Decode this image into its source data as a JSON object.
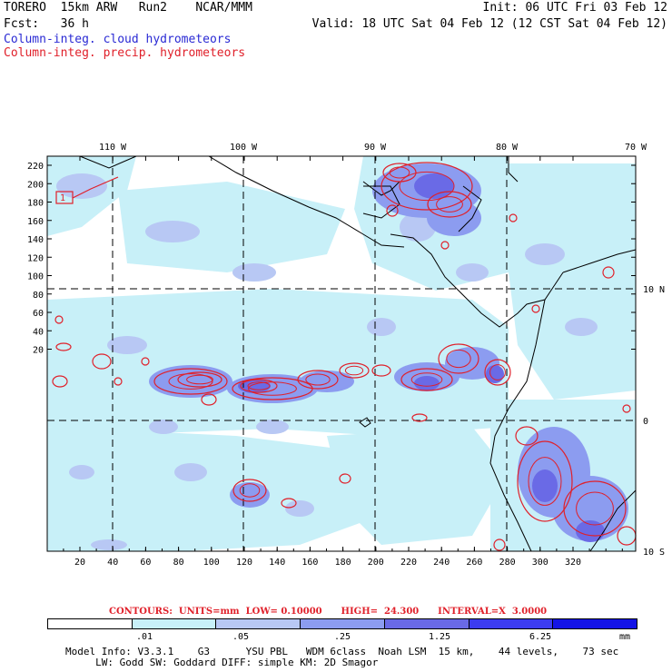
{
  "header": {
    "line1_left": "TORERO  15km ARW   Run2    NCAR/MMM",
    "line1_right": "Init: 06 UTC Fri 03 Feb 12",
    "line2_left": "Fcst:   36 h",
    "line2_right": "Valid: 18 UTC Sat 04 Feb 12 (12 CST Sat 04 Feb 12)",
    "field_cloud": "Column-integ. cloud hydrometeors",
    "field_precip": "Column-integ. precip. hydrometeors"
  },
  "map": {
    "lon_labels": [
      "110 W",
      "100 W",
      "90 W",
      "80 W",
      "70 W"
    ],
    "lat_labels": [
      "10 N",
      "0",
      "10 S"
    ],
    "y_ticks": [
      "220",
      "200",
      "180",
      "160",
      "140",
      "120",
      "100",
      "80",
      "60",
      "40",
      "20"
    ],
    "x_ticks": [
      "20",
      "40",
      "60",
      "80",
      "100",
      "120",
      "140",
      "160",
      "180",
      "200",
      "220",
      "240",
      "260",
      "280",
      "300",
      "320"
    ],
    "box_label": "1",
    "colors": {
      "shade1": "#c8f0f8",
      "shade2": "#b8c8f4",
      "shade3": "#8c9cf0",
      "shade4": "#6a6ae6",
      "shade5": "#3c3cf0",
      "shade6": "#1414e6",
      "contour": "#e0202a",
      "coast": "#000000"
    }
  },
  "contours_note": "CONTOURS:  UNITS=mm  LOW= 0.10000      HIGH=  24.300      INTERVAL=X  3.0000",
  "colorbar": {
    "labels": [
      ".01",
      ".05",
      ".25",
      "1.25",
      "6.25"
    ],
    "units": "mm",
    "colors": [
      "#ffffff",
      "#c8f0f8",
      "#b8c8f4",
      "#8c9cf0",
      "#6a6ae6",
      "#3c3cf0",
      "#1414e6"
    ]
  },
  "model_info": {
    "line1": "Model Info: V3.3.1    G3      YSU PBL   WDM 6class  Noah LSM  15 km,    44 levels,    73 sec",
    "line2": "     LW: Godd SW: Goddard DIFF: simple KM: 2D Smagor"
  }
}
